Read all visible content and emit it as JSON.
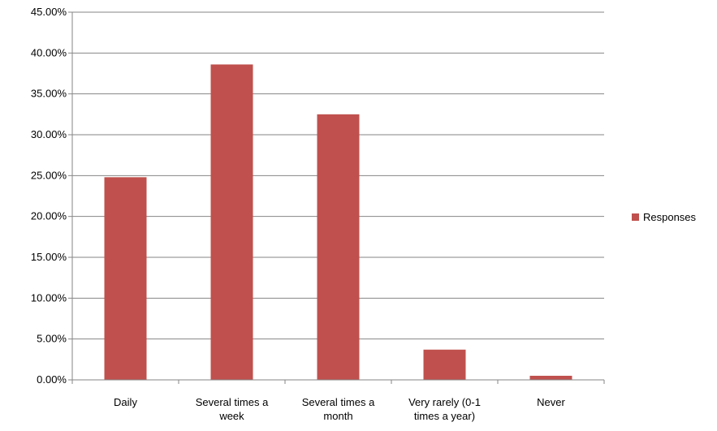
{
  "chart_data": {
    "type": "bar",
    "title": "",
    "xlabel": "",
    "ylabel": "",
    "categories": [
      [
        "Daily"
      ],
      [
        "Several times a",
        "week"
      ],
      [
        "Several times a",
        "month"
      ],
      [
        "Very rarely (0-1",
        "times a year)"
      ],
      [
        "Never"
      ]
    ],
    "series": [
      {
        "name": "Responses",
        "values": [
          24.8,
          38.6,
          32.5,
          3.7,
          0.5
        ]
      }
    ],
    "ylim": [
      0,
      45
    ],
    "ytick_step": 5,
    "ytick_labels": [
      "0.00%",
      "5.00%",
      "10.00%",
      "15.00%",
      "20.00%",
      "25.00%",
      "30.00%",
      "35.00%",
      "40.00%",
      "45.00%"
    ],
    "grid": true,
    "legend_position": "right",
    "bar_color": "#c0504d"
  }
}
